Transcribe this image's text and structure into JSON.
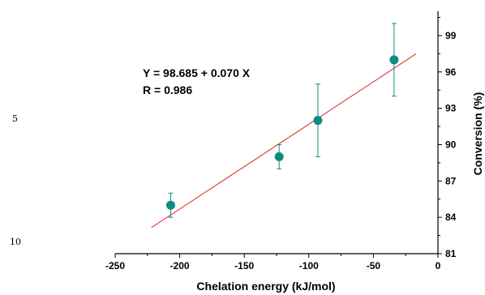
{
  "margin_numbers": [
    "5",
    "10"
  ],
  "chart_data": {
    "type": "scatter",
    "xlabel": "Chelation energy (kJ/mol)",
    "ylabel": "Conversion (%)",
    "xlim": [
      -250,
      0
    ],
    "ylim": [
      81,
      101
    ],
    "x_ticks": [
      "-250",
      "-200",
      "-150",
      "-100",
      "-50",
      "0"
    ],
    "y_ticks": [
      "81",
      "84",
      "87",
      "90",
      "93",
      "96",
      "99"
    ],
    "y_axis_side": "right",
    "grid": false,
    "points": [
      {
        "x": -207,
        "y": 85,
        "err_low": 84,
        "err_high": 86
      },
      {
        "x": -123,
        "y": 89,
        "err_low": 88,
        "err_high": 90
      },
      {
        "x": -93,
        "y": 92,
        "err_low": 89,
        "err_high": 95
      },
      {
        "x": -34,
        "y": 97,
        "err_low": 94,
        "err_high": 100
      }
    ],
    "fit": {
      "intercept": 98.685,
      "slope": 0.07,
      "x_start": -222,
      "x_end": -17
    },
    "annotations": [
      "Y = 98.685 + 0.070 X",
      "R = 0.986"
    ],
    "colors": {
      "marker": "#0f8c82",
      "errorbar": "#0f8c82",
      "fit_line": "#e8241f",
      "axis": "#000000"
    }
  }
}
